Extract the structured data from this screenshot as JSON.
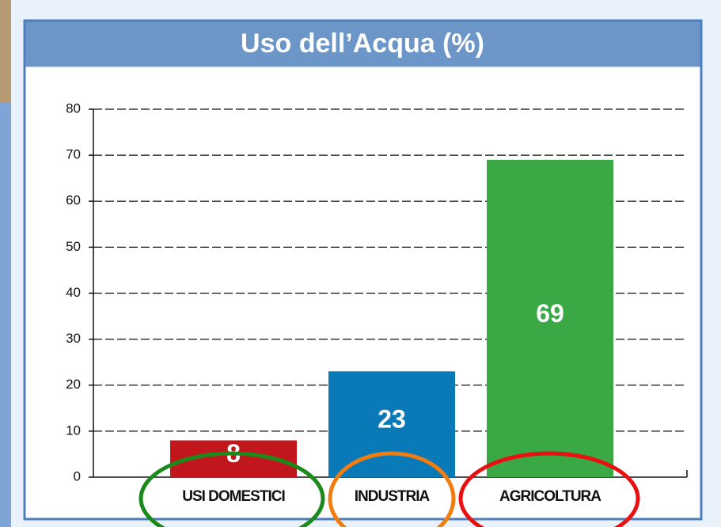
{
  "chart_data": {
    "type": "bar",
    "title": "Uso dell’Acqua (%)",
    "categories": [
      "USI DOMESTICI",
      "INDUSTRIA",
      "AGRICOLTURA"
    ],
    "values": [
      8,
      23,
      69
    ],
    "colors": [
      "#c0161c",
      "#0a79b8",
      "#3aa845"
    ],
    "ylim": [
      0,
      80
    ],
    "yticks": [
      0,
      10,
      20,
      30,
      40,
      50,
      60,
      70,
      80
    ],
    "grid": true
  }
}
